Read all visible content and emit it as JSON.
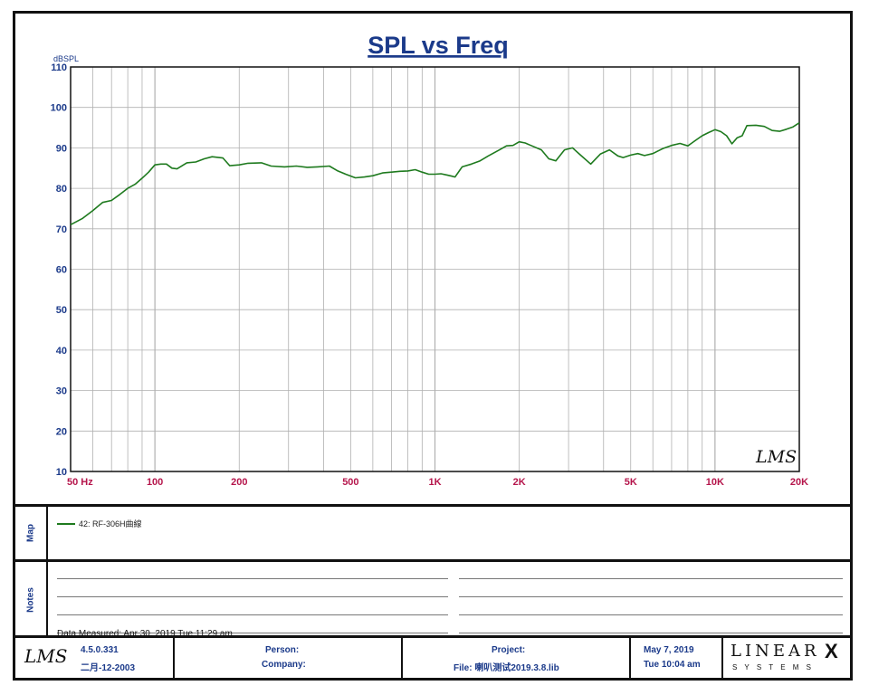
{
  "chart_data": {
    "type": "line",
    "title": "SPL vs Freq",
    "ylabel": "dBSPL",
    "xlabel": "",
    "x_scale": "log",
    "xlim": [
      50,
      20000
    ],
    "ylim": [
      10,
      110
    ],
    "grid": true,
    "y_ticks": [
      10,
      20,
      30,
      40,
      50,
      60,
      70,
      80,
      90,
      100,
      110
    ],
    "x_ticks": [
      {
        "value": 50,
        "label": "50  Hz"
      },
      {
        "value": 100,
        "label": "100"
      },
      {
        "value": 200,
        "label": "200"
      },
      {
        "value": 500,
        "label": "500"
      },
      {
        "value": 1000,
        "label": "1K"
      },
      {
        "value": 2000,
        "label": "2K"
      },
      {
        "value": 5000,
        "label": "5K"
      },
      {
        "value": 10000,
        "label": "10K"
      },
      {
        "value": 20000,
        "label": "20K"
      }
    ],
    "series": [
      {
        "name": "42: RF-306H曲線",
        "color": "#1e7a1e",
        "points": [
          [
            50,
            71
          ],
          [
            55,
            72.5
          ],
          [
            60,
            74.5
          ],
          [
            65,
            76.5
          ],
          [
            70,
            77
          ],
          [
            75,
            78.5
          ],
          [
            80,
            80
          ],
          [
            85,
            81
          ],
          [
            90,
            82.5
          ],
          [
            95,
            84
          ],
          [
            100,
            85.8
          ],
          [
            105,
            86
          ],
          [
            110,
            86
          ],
          [
            115,
            85
          ],
          [
            120,
            84.8
          ],
          [
            130,
            86.3
          ],
          [
            140,
            86.5
          ],
          [
            150,
            87.3
          ],
          [
            160,
            87.8
          ],
          [
            175,
            87.5
          ],
          [
            185,
            85.6
          ],
          [
            200,
            85.8
          ],
          [
            215,
            86.2
          ],
          [
            240,
            86.3
          ],
          [
            260,
            85.5
          ],
          [
            290,
            85.3
          ],
          [
            320,
            85.5
          ],
          [
            350,
            85.2
          ],
          [
            380,
            85.3
          ],
          [
            420,
            85.5
          ],
          [
            450,
            84.3
          ],
          [
            480,
            83.5
          ],
          [
            520,
            82.6
          ],
          [
            560,
            82.8
          ],
          [
            600,
            83.1
          ],
          [
            650,
            83.8
          ],
          [
            700,
            84
          ],
          [
            750,
            84.2
          ],
          [
            800,
            84.3
          ],
          [
            850,
            84.6
          ],
          [
            900,
            84
          ],
          [
            950,
            83.5
          ],
          [
            1000,
            83.5
          ],
          [
            1050,
            83.6
          ],
          [
            1100,
            83.3
          ],
          [
            1150,
            83
          ],
          [
            1180,
            82.8
          ],
          [
            1250,
            85.3
          ],
          [
            1350,
            86
          ],
          [
            1450,
            86.8
          ],
          [
            1550,
            88
          ],
          [
            1700,
            89.5
          ],
          [
            1800,
            90.5
          ],
          [
            1900,
            90.6
          ],
          [
            2000,
            91.5
          ],
          [
            2100,
            91.2
          ],
          [
            2200,
            90.6
          ],
          [
            2400,
            89.5
          ],
          [
            2550,
            87.3
          ],
          [
            2700,
            86.8
          ],
          [
            2900,
            89.5
          ],
          [
            3100,
            90
          ],
          [
            3300,
            88.3
          ],
          [
            3600,
            86
          ],
          [
            3900,
            88.5
          ],
          [
            4200,
            89.5
          ],
          [
            4500,
            88
          ],
          [
            4700,
            87.6
          ],
          [
            5000,
            88.2
          ],
          [
            5300,
            88.6
          ],
          [
            5600,
            88.1
          ],
          [
            6000,
            88.6
          ],
          [
            6500,
            89.8
          ],
          [
            7000,
            90.6
          ],
          [
            7500,
            91.1
          ],
          [
            8000,
            90.5
          ],
          [
            8500,
            91.8
          ],
          [
            9000,
            93
          ],
          [
            9500,
            93.8
          ],
          [
            10000,
            94.5
          ],
          [
            10500,
            94
          ],
          [
            11000,
            93
          ],
          [
            11500,
            91
          ],
          [
            12000,
            92.5
          ],
          [
            12500,
            93
          ],
          [
            13000,
            95.5
          ],
          [
            14000,
            95.6
          ],
          [
            15000,
            95.3
          ],
          [
            16000,
            94.3
          ],
          [
            17000,
            94.1
          ],
          [
            18000,
            94.6
          ],
          [
            19000,
            95.2
          ],
          [
            20000,
            96.2
          ]
        ]
      }
    ]
  },
  "chart_logo": "LMS",
  "map_section": {
    "label": "Map"
  },
  "notes_section": {
    "label": "Notes",
    "data_measured": "Data Measured: Apr 30, 2019  Tue 11:29 am"
  },
  "footer": {
    "logo": "LMS",
    "version": "4.5.0.331",
    "build_date": "二月-12-2003",
    "person_label": "Person:",
    "company_label": "Company:",
    "project_label": "Project:",
    "file": "File: 喇叭测试2019.3.8.lib",
    "date": "May  7, 2019",
    "time": "Tue 10:04 am",
    "brand_top": "LINEAR",
    "brand_x": "X",
    "brand_bottom": "S Y S T E M S"
  },
  "colors": {
    "title": "#1b3a8a",
    "axis_y_labels": "#1b3a8a",
    "axis_x_labels": "#b5154b",
    "grid": "#b0b0b0",
    "curve": "#1e7a1e"
  }
}
